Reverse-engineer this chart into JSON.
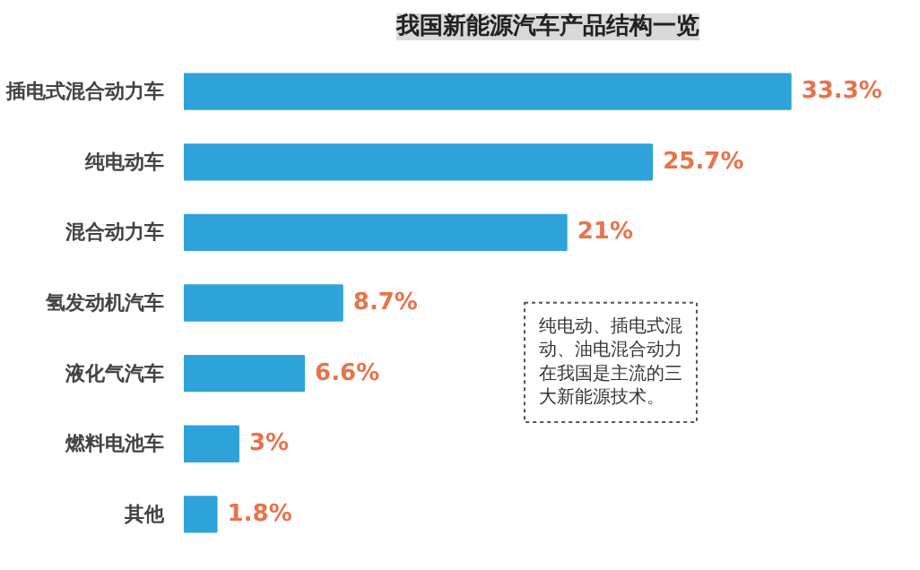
{
  "chart_data": {
    "type": "bar",
    "orientation": "horizontal",
    "title": "我国新能源汽车产品结构一览",
    "categories": [
      "插电式混合动力车",
      "纯电动车",
      "混合动力车",
      "氢发动机汽车",
      "液化气汽车",
      "燃料电池车",
      "其他"
    ],
    "values": [
      33.3,
      25.7,
      21,
      8.7,
      6.6,
      3,
      1.8
    ],
    "value_labels": [
      "33.3%",
      "25.7%",
      "21%",
      "8.7%",
      "6.6%",
      "3%",
      "1.8%"
    ],
    "color": "#2ea3d9",
    "grid": false,
    "annotations": [
      "纯电动、插电式混动、油电混合动力在我国是主流的三大新能源技术。"
    ]
  }
}
